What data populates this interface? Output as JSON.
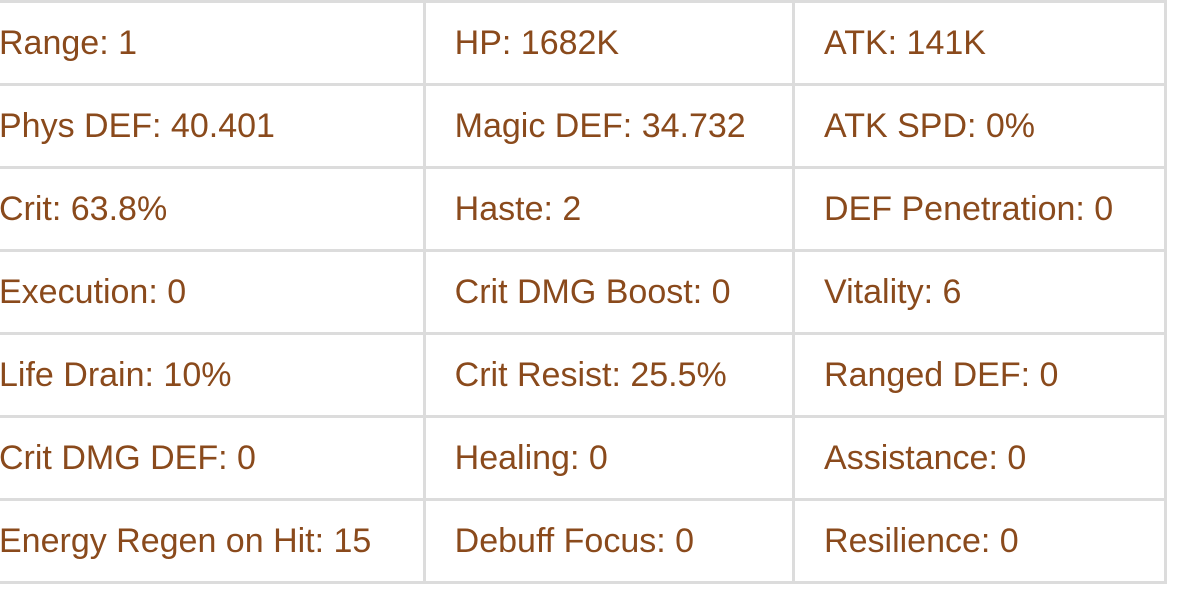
{
  "stats": {
    "rows": [
      [
        "Range: 1",
        "HP: 1682K",
        "ATK: 141K"
      ],
      [
        "Phys DEF: 40.401",
        "Magic DEF: 34.732",
        "ATK SPD: 0%"
      ],
      [
        "Crit: 63.8%",
        "Haste: 2",
        "DEF Penetration: 0"
      ],
      [
        "Execution: 0",
        "Crit DMG Boost: 0",
        "Vitality: 6"
      ],
      [
        "Life Drain: 10%",
        "Crit Resist: 25.5%",
        "Ranged DEF: 0"
      ],
      [
        "Crit DMG DEF: 0",
        "Healing: 0",
        "Assistance: 0"
      ],
      [
        "Energy Regen on Hit: 15",
        "Debuff Focus: 0",
        "Resilience: 0"
      ]
    ]
  },
  "colors": {
    "text": "#8a4a1c",
    "border": "#dcdcdc"
  }
}
